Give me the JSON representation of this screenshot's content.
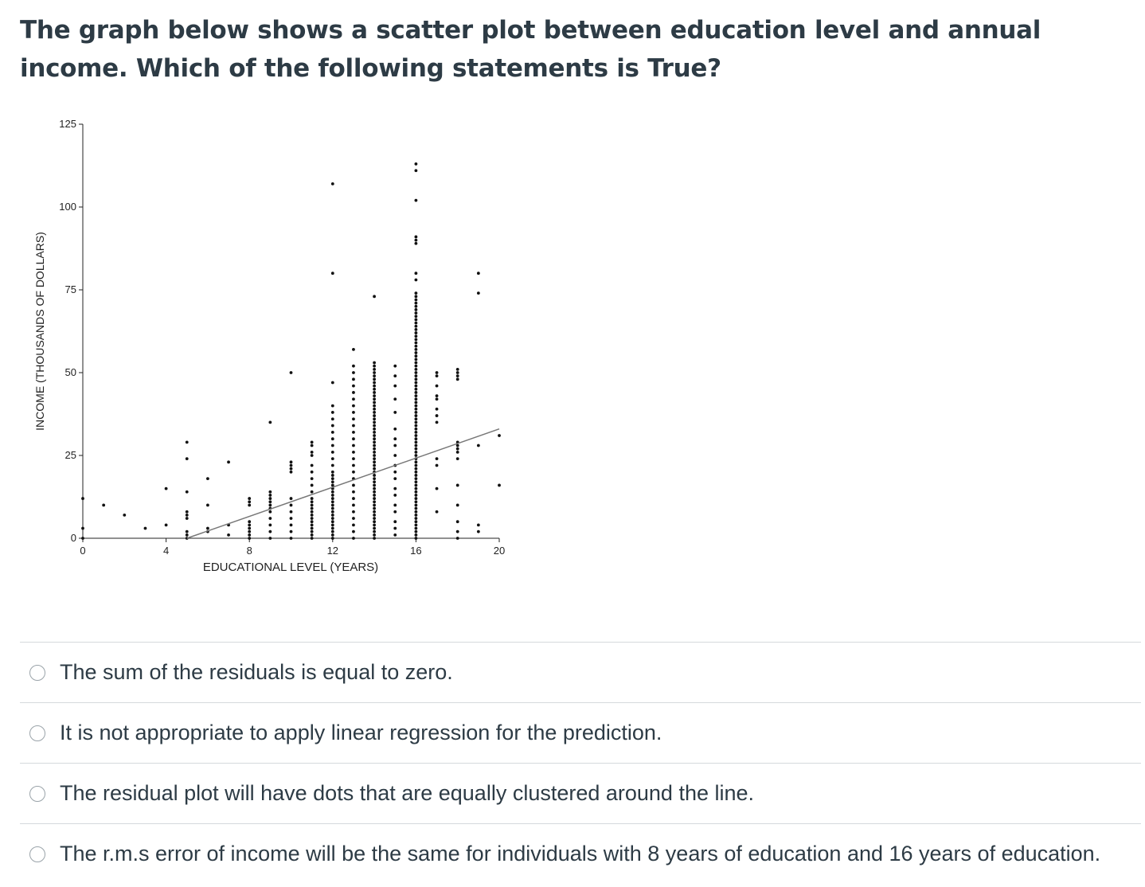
{
  "question": {
    "text": "The graph below shows a scatter plot between education level and annual income. Which of the following statements is True?"
  },
  "chart_data": {
    "type": "scatter",
    "xlabel": "EDUCATIONAL LEVEL (YEARS)",
    "ylabel": "INCOME (THOUSANDS OF DOLLARS)",
    "xlim": [
      0,
      20
    ],
    "ylim": [
      0,
      125
    ],
    "xticks": [
      0,
      4,
      8,
      12,
      16,
      20
    ],
    "yticks": [
      0,
      25,
      50,
      75,
      100,
      125
    ],
    "grid": false,
    "regression_line": {
      "x": [
        5,
        20
      ],
      "y": [
        0,
        33
      ]
    },
    "columns": [
      {
        "x": 0,
        "y": [
          0,
          3,
          12
        ]
      },
      {
        "x": 1,
        "y": [
          10
        ]
      },
      {
        "x": 2,
        "y": [
          7
        ]
      },
      {
        "x": 3,
        "y": [
          3
        ]
      },
      {
        "x": 4,
        "y": [
          4,
          15
        ]
      },
      {
        "x": 5,
        "y": [
          0,
          1,
          2,
          6,
          7,
          8,
          14,
          24,
          29
        ]
      },
      {
        "x": 6,
        "y": [
          2,
          3,
          10,
          18
        ]
      },
      {
        "x": 7,
        "y": [
          1,
          4,
          23
        ]
      },
      {
        "x": 8,
        "y": [
          0,
          1,
          2,
          3,
          4,
          5,
          10,
          11,
          12
        ]
      },
      {
        "x": 9,
        "y": [
          0,
          2,
          4,
          6,
          8,
          9,
          10,
          11,
          12,
          13,
          14,
          35
        ]
      },
      {
        "x": 10,
        "y": [
          0,
          2,
          4,
          6,
          8,
          10,
          12,
          20,
          21,
          22,
          23,
          50
        ]
      },
      {
        "x": 11,
        "y": [
          0,
          1,
          2,
          3,
          4,
          5,
          6,
          7,
          8,
          9,
          10,
          11,
          12,
          14,
          16,
          18,
          20,
          22,
          25,
          26,
          28,
          29
        ]
      },
      {
        "x": 12,
        "y": [
          0,
          1,
          2,
          3,
          4,
          5,
          6,
          7,
          8,
          9,
          10,
          11,
          12,
          13,
          14,
          15,
          16,
          17,
          18,
          19,
          20,
          22,
          24,
          26,
          28,
          30,
          32,
          34,
          36,
          38,
          40,
          47,
          80,
          107
        ]
      },
      {
        "x": 13,
        "y": [
          0,
          2,
          4,
          6,
          8,
          10,
          12,
          14,
          16,
          18,
          20,
          22,
          24,
          26,
          28,
          30,
          32,
          34,
          36,
          38,
          40,
          42,
          44,
          46,
          48,
          50,
          52,
          57
        ]
      },
      {
        "x": 14,
        "y": [
          0,
          1,
          2,
          3,
          4,
          5,
          6,
          7,
          8,
          9,
          10,
          11,
          12,
          13,
          14,
          15,
          16,
          17,
          18,
          19,
          20,
          21,
          22,
          23,
          24,
          25,
          26,
          27,
          28,
          29,
          30,
          31,
          32,
          33,
          34,
          35,
          36,
          37,
          38,
          39,
          40,
          41,
          42,
          43,
          44,
          45,
          46,
          47,
          48,
          49,
          50,
          51,
          52,
          53,
          73
        ]
      },
      {
        "x": 15,
        "y": [
          1,
          3,
          5,
          8,
          10,
          13,
          15,
          18,
          20,
          22,
          25,
          28,
          30,
          33,
          38,
          42,
          46,
          49,
          52
        ]
      },
      {
        "x": 16,
        "y": [
          0,
          1,
          2,
          3,
          4,
          5,
          6,
          7,
          8,
          9,
          10,
          11,
          12,
          13,
          14,
          15,
          16,
          17,
          18,
          19,
          20,
          21,
          22,
          23,
          24,
          25,
          26,
          27,
          28,
          29,
          30,
          31,
          32,
          33,
          34,
          35,
          36,
          37,
          38,
          39,
          40,
          41,
          42,
          43,
          44,
          45,
          46,
          47,
          48,
          49,
          50,
          51,
          52,
          53,
          54,
          55,
          56,
          57,
          58,
          59,
          60,
          61,
          62,
          63,
          64,
          65,
          66,
          67,
          68,
          69,
          70,
          71,
          72,
          73,
          74,
          78,
          80,
          89,
          90,
          91,
          102,
          111,
          113
        ]
      },
      {
        "x": 17,
        "y": [
          8,
          15,
          22,
          24,
          35,
          37,
          39,
          42,
          43,
          46,
          49,
          50
        ]
      },
      {
        "x": 18,
        "y": [
          0,
          2,
          5,
          10,
          16,
          24,
          26,
          27,
          28,
          29,
          48,
          49,
          50,
          51
        ]
      },
      {
        "x": 19,
        "y": [
          2,
          4,
          28,
          74,
          80
        ]
      },
      {
        "x": 20,
        "y": [
          16,
          31
        ]
      }
    ]
  },
  "answers": [
    {
      "label": "The sum of the residuals is equal to zero."
    },
    {
      "label": "It is not appropriate to apply linear regression for the prediction."
    },
    {
      "label": "The residual plot will have dots that are equally clustered around the line."
    },
    {
      "label": "The r.m.s error of income will be the same for individuals with 8 years of education and 16 years of education."
    }
  ]
}
